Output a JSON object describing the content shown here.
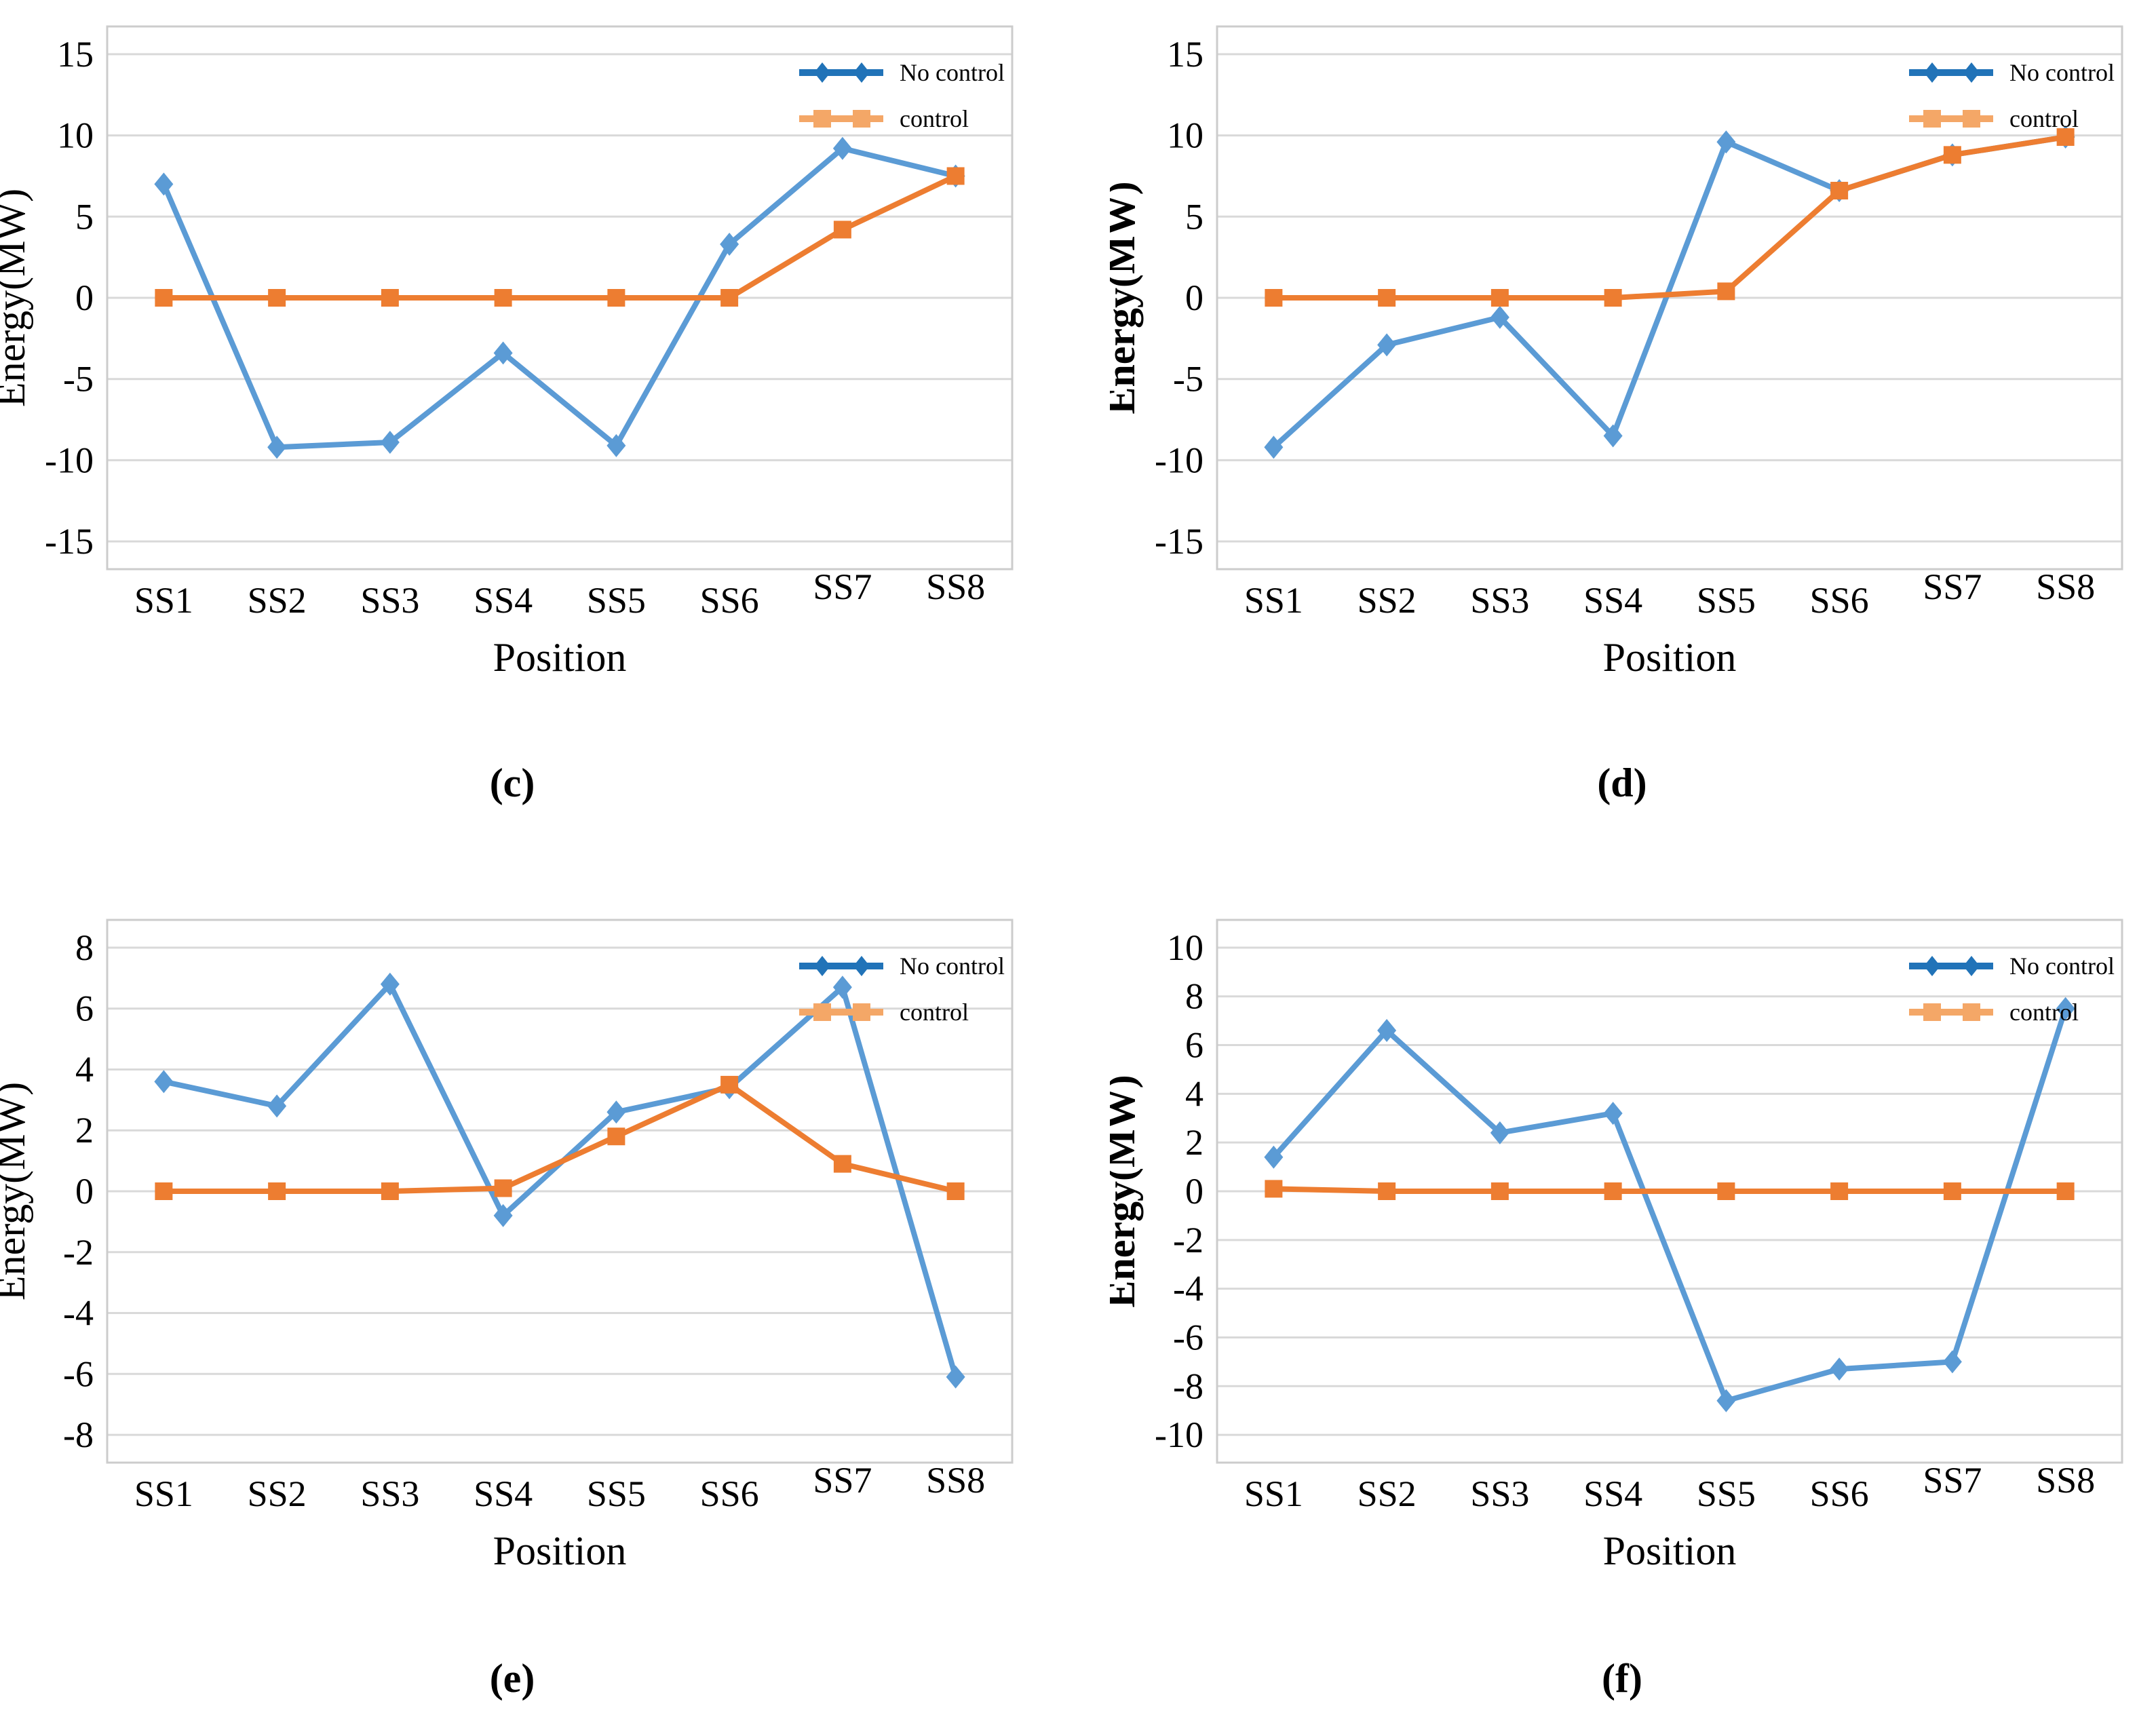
{
  "colors": {
    "no_control_line": "#5B9BD5",
    "control_line": "#ED7D31",
    "no_control_legend": "#2173B8",
    "control_legend": "#F4A767",
    "gridline": "#D9D9D9",
    "plot_border": "#CCCCCC",
    "text": "#000000"
  },
  "chart_data": [
    {
      "id": "c",
      "caption": "(c)",
      "type": "line",
      "xlabel": "Position",
      "ylabel": "Energy(MW)",
      "ylabel_bold": false,
      "grid": true,
      "legend_position": "top-right",
      "categories": [
        "SS1",
        "SS2",
        "SS3",
        "SS4",
        "SS5",
        "SS6",
        "SS7",
        "SS8"
      ],
      "ylim": [
        -15,
        15
      ],
      "ytick_step": 5,
      "series": [
        {
          "name": "No control",
          "marker": "diamond",
          "values": [
            7.0,
            -9.2,
            -8.9,
            -3.4,
            -9.1,
            3.3,
            9.2,
            7.5
          ]
        },
        {
          "name": "control",
          "marker": "square",
          "values": [
            0,
            0,
            0,
            0,
            0,
            0,
            4.2,
            7.5
          ]
        }
      ]
    },
    {
      "id": "d",
      "caption": "(d)",
      "type": "line",
      "xlabel": "Position",
      "ylabel": "Energy(MW)",
      "ylabel_bold": true,
      "grid": true,
      "legend_position": "top-right",
      "categories": [
        "SS1",
        "SS2",
        "SS3",
        "SS4",
        "SS5",
        "SS6",
        "SS7",
        "SS8"
      ],
      "ylim": [
        -15,
        15
      ],
      "ytick_step": 5,
      "series": [
        {
          "name": "No control",
          "marker": "diamond",
          "values": [
            -9.2,
            -2.9,
            -1.2,
            -8.5,
            9.6,
            6.6,
            8.8,
            9.9
          ]
        },
        {
          "name": "control",
          "marker": "square",
          "values": [
            0,
            0,
            0,
            0,
            0.4,
            6.6,
            8.8,
            9.9
          ]
        }
      ]
    },
    {
      "id": "e",
      "caption": "(e)",
      "type": "line",
      "xlabel": "Position",
      "ylabel": "Energy(MW)",
      "ylabel_bold": false,
      "grid": true,
      "legend_position": "top-right",
      "categories": [
        "SS1",
        "SS2",
        "SS3",
        "SS4",
        "SS5",
        "SS6",
        "SS7",
        "SS8"
      ],
      "ylim": [
        -8,
        8
      ],
      "ytick_step": 2,
      "series": [
        {
          "name": "No control",
          "marker": "diamond",
          "values": [
            3.6,
            2.8,
            6.8,
            -0.8,
            2.6,
            3.4,
            6.7,
            -6.1
          ]
        },
        {
          "name": "control",
          "marker": "square",
          "values": [
            0,
            0,
            0,
            0.1,
            1.8,
            3.5,
            0.9,
            0
          ]
        }
      ]
    },
    {
      "id": "f",
      "caption": "(f)",
      "type": "line",
      "xlabel": "Position",
      "ylabel": "Energy(MW)",
      "ylabel_bold": true,
      "grid": true,
      "legend_position": "top-right",
      "categories": [
        "SS1",
        "SS2",
        "SS3",
        "SS4",
        "SS5",
        "SS6",
        "SS7",
        "SS8"
      ],
      "ylim": [
        -10,
        10
      ],
      "ytick_step": 2,
      "series": [
        {
          "name": "No control",
          "marker": "diamond",
          "values": [
            1.4,
            6.6,
            2.4,
            3.2,
            -8.6,
            -7.3,
            -7.0,
            7.5
          ]
        },
        {
          "name": "control",
          "marker": "square",
          "values": [
            0.1,
            0,
            0,
            0,
            0,
            0,
            0,
            0
          ]
        }
      ]
    }
  ]
}
